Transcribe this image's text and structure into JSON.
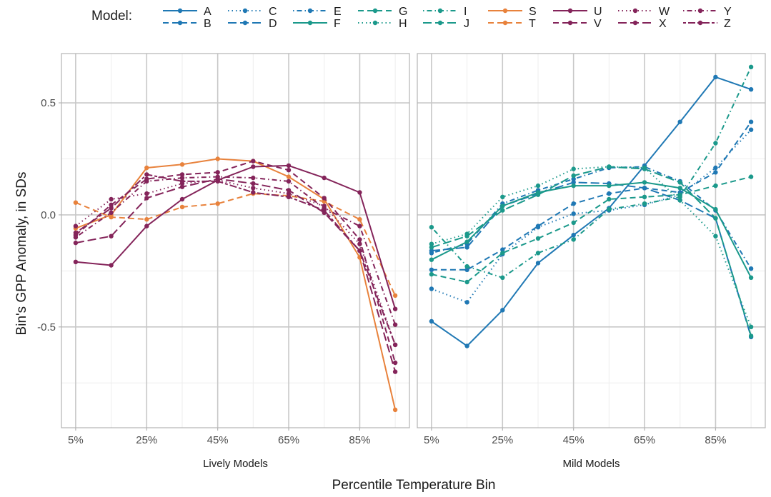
{
  "chart_data": {
    "type": "line",
    "xlabel": "Percentile Temperature Bin",
    "ylabel": "Bin's GPP Anomaly, in SDs",
    "x": [
      5,
      15,
      25,
      35,
      45,
      55,
      65,
      75,
      85,
      95
    ],
    "xticks": [
      5,
      25,
      45,
      65,
      85
    ],
    "xtick_labels": [
      "5%",
      "25%",
      "45%",
      "65%",
      "85%"
    ],
    "ylim": [
      -0.95,
      0.72
    ],
    "yticks": [
      -0.5,
      0.0,
      0.5
    ],
    "ytick_labels": [
      "-0.5",
      "0.0",
      "0.5"
    ],
    "grid": true,
    "legend": {
      "title": "Model:",
      "position": "top",
      "entries": [
        {
          "name": "A",
          "color": "#1f78b4",
          "dash": "solid"
        },
        {
          "name": "B",
          "color": "#1f78b4",
          "dash": "dashed"
        },
        {
          "name": "C",
          "color": "#1f78b4",
          "dash": "dotted"
        },
        {
          "name": "D",
          "color": "#1f78b4",
          "dash": "longdash"
        },
        {
          "name": "E",
          "color": "#1f78b4",
          "dash": "dotdash"
        },
        {
          "name": "F",
          "color": "#1b998b",
          "dash": "solid"
        },
        {
          "name": "G",
          "color": "#1b998b",
          "dash": "dashed"
        },
        {
          "name": "H",
          "color": "#1b998b",
          "dash": "dotted"
        },
        {
          "name": "I",
          "color": "#1b998b",
          "dash": "dotdash"
        },
        {
          "name": "J",
          "color": "#1b998b",
          "dash": "longdash"
        },
        {
          "name": "S",
          "color": "#e8823c",
          "dash": "solid"
        },
        {
          "name": "T",
          "color": "#e8823c",
          "dash": "dashed"
        },
        {
          "name": "U",
          "color": "#84245a",
          "dash": "solid"
        },
        {
          "name": "V",
          "color": "#84245a",
          "dash": "dashed"
        },
        {
          "name": "W",
          "color": "#84245a",
          "dash": "dotted"
        },
        {
          "name": "X",
          "color": "#84245a",
          "dash": "longdash"
        },
        {
          "name": "Y",
          "color": "#84245a",
          "dash": "dotdash"
        },
        {
          "name": "Z",
          "color": "#84245a",
          "dash": "twodash"
        }
      ]
    },
    "panels": [
      {
        "label": "Lively Models",
        "series": [
          {
            "name": "S",
            "values": [
              -0.06,
              0.0,
              0.21,
              0.225,
              0.25,
              0.24,
              0.17,
              0.07,
              -0.19,
              -0.87
            ]
          },
          {
            "name": "T",
            "values": [
              0.055,
              -0.01,
              -0.02,
              0.035,
              0.05,
              0.095,
              0.085,
              0.06,
              -0.02,
              -0.36
            ]
          },
          {
            "name": "U",
            "values": [
              -0.21,
              -0.225,
              -0.05,
              0.07,
              0.155,
              0.215,
              0.22,
              0.165,
              0.1,
              -0.42
            ]
          },
          {
            "name": "V",
            "values": [
              -0.09,
              0.045,
              0.16,
              0.18,
              0.19,
              0.24,
              0.2,
              0.075,
              -0.11,
              -0.66
            ]
          },
          {
            "name": "W",
            "values": [
              -0.05,
              0.07,
              0.095,
              0.14,
              0.155,
              0.12,
              0.095,
              0.04,
              -0.13,
              -0.58
            ]
          },
          {
            "name": "X",
            "values": [
              -0.125,
              -0.095,
              0.075,
              0.125,
              0.16,
              0.14,
              0.11,
              0.01,
              -0.16,
              -0.7
            ]
          },
          {
            "name": "Y",
            "values": [
              -0.1,
              0.01,
              0.15,
              0.165,
              0.17,
              0.165,
              0.15,
              0.03,
              -0.05,
              -0.49
            ]
          },
          {
            "name": "Z",
            "values": [
              -0.08,
              0.03,
              0.18,
              0.15,
              0.15,
              0.1,
              0.08,
              0.02,
              -0.16,
              -0.58
            ]
          }
        ]
      },
      {
        "label": "Mild Models",
        "series": [
          {
            "name": "A",
            "values": [
              -0.475,
              -0.585,
              -0.425,
              -0.215,
              -0.09,
              0.03,
              0.22,
              0.415,
              0.615,
              0.56
            ]
          },
          {
            "name": "B",
            "values": [
              -0.245,
              -0.245,
              -0.155,
              -0.05,
              0.05,
              0.095,
              0.12,
              0.1,
              0.19,
              0.415
            ]
          },
          {
            "name": "C",
            "values": [
              -0.33,
              -0.39,
              -0.175,
              -0.055,
              0.005,
              0.02,
              0.045,
              0.09,
              0.21,
              0.38
            ]
          },
          {
            "name": "D",
            "values": [
              -0.16,
              -0.145,
              0.04,
              0.095,
              0.145,
              0.14,
              0.12,
              0.065,
              -0.015,
              -0.545
            ]
          },
          {
            "name": "E",
            "values": [
              -0.17,
              -0.13,
              0.05,
              0.11,
              0.16,
              0.21,
              0.215,
              0.15,
              0.02,
              -0.24
            ]
          },
          {
            "name": "F",
            "values": [
              -0.2,
              -0.12,
              0.04,
              0.1,
              0.13,
              0.13,
              0.145,
              0.12,
              0.025,
              -0.28
            ]
          },
          {
            "name": "G",
            "values": [
              -0.265,
              -0.3,
              -0.17,
              -0.105,
              -0.035,
              0.07,
              0.08,
              0.09,
              0.13,
              0.17
            ]
          },
          {
            "name": "H",
            "values": [
              -0.13,
              -0.085,
              0.08,
              0.13,
              0.205,
              0.215,
              0.21,
              0.065,
              -0.095,
              -0.5
            ]
          },
          {
            "name": "I",
            "values": [
              -0.055,
              -0.23,
              -0.28,
              -0.17,
              -0.11,
              0.025,
              0.05,
              0.08,
              0.32,
              0.66
            ]
          },
          {
            "name": "J",
            "values": [
              -0.145,
              -0.095,
              0.02,
              0.09,
              0.175,
              0.215,
              0.205,
              0.145,
              -0.015,
              -0.54
            ]
          }
        ]
      }
    ]
  }
}
